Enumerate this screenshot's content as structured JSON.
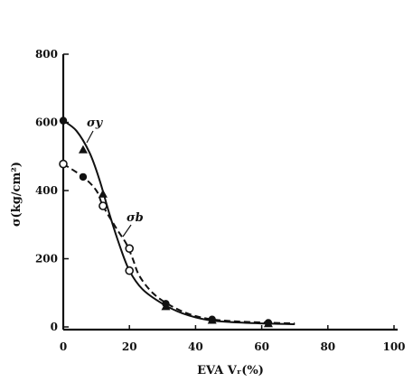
{
  "chart_data": {
    "type": "line",
    "xlabel": "EVA Vᵣ(%)",
    "ylabel": "σ(kg/cm²)",
    "xlim": [
      0,
      100
    ],
    "ylim": [
      0,
      800
    ],
    "x_ticks": [
      "0",
      "20",
      "40",
      "60",
      "80",
      "100"
    ],
    "y_ticks": [
      "0",
      "200",
      "400",
      "600",
      "800"
    ],
    "grid": false,
    "series": [
      {
        "name": "σy",
        "line_style": "solid",
        "points": [
          {
            "x": 0,
            "y": 605,
            "marker": "dot"
          },
          {
            "x": 6,
            "y": 520,
            "marker": "triangle"
          },
          {
            "x": 12,
            "y": 390,
            "marker": "triangle"
          },
          {
            "x": 31,
            "y": 60,
            "marker": "triangle"
          },
          {
            "x": 45,
            "y": 20,
            "marker": "triangle"
          },
          {
            "x": 62,
            "y": 10,
            "marker": "triangle"
          }
        ],
        "curve": [
          [
            0,
            605
          ],
          [
            4,
            575
          ],
          [
            8,
            510
          ],
          [
            11,
            430
          ],
          [
            14,
            330
          ],
          [
            17,
            240
          ],
          [
            20,
            165
          ],
          [
            24,
            110
          ],
          [
            30,
            68
          ],
          [
            36,
            40
          ],
          [
            44,
            20
          ],
          [
            55,
            12
          ],
          [
            70,
            8
          ]
        ]
      },
      {
        "name": "σb",
        "line_style": "dashed",
        "points": [
          {
            "x": 0,
            "y": 478,
            "marker": "circle"
          },
          {
            "x": 6,
            "y": 440,
            "marker": "dot"
          },
          {
            "x": 12,
            "y": 355,
            "marker": "circle"
          },
          {
            "x": 20,
            "y": 165,
            "marker": "circle"
          },
          {
            "x": 20,
            "y": 230,
            "marker": "circle"
          },
          {
            "x": 31,
            "y": 68,
            "marker": "dot"
          },
          {
            "x": 45,
            "y": 22,
            "marker": "dot"
          },
          {
            "x": 62,
            "y": 12,
            "marker": "dot"
          }
        ],
        "curve": [
          [
            0,
            478
          ],
          [
            6,
            440
          ],
          [
            10,
            400
          ],
          [
            12,
            355
          ],
          [
            16,
            290
          ],
          [
            19,
            245
          ],
          [
            21,
            200
          ],
          [
            23,
            150
          ],
          [
            27,
            100
          ],
          [
            32,
            65
          ],
          [
            38,
            38
          ],
          [
            45,
            22
          ],
          [
            55,
            15
          ],
          [
            70,
            10
          ]
        ]
      }
    ]
  }
}
